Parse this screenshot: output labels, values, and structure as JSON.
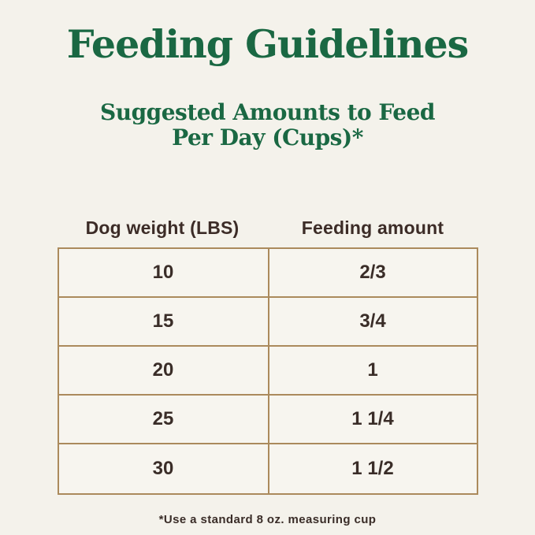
{
  "colors": {
    "background": "#f4f2eb",
    "title_green": "#1a6843",
    "table_border_tan": "#ab8a5c",
    "text_dark_brown": "#3a2d28"
  },
  "header": {
    "title": "Feeding Guidelines",
    "subtitle_line1": "Suggested Amounts to Feed",
    "subtitle_line2": "Per Day (Cups)*"
  },
  "table": {
    "columns": [
      "Dog weight (LBS)",
      "Feeding amount"
    ],
    "rows": [
      [
        "10",
        "2/3"
      ],
      [
        "15",
        "3/4"
      ],
      [
        "20",
        "1"
      ],
      [
        "25",
        "1 1/4"
      ],
      [
        "30",
        "1 1/2"
      ]
    ]
  },
  "footnote": "*Use a standard 8 oz. measuring cup",
  "chart_data": {
    "type": "table",
    "title": "Feeding Guidelines",
    "subtitle": "Suggested Amounts to Feed Per Day (Cups)*",
    "columns": [
      "Dog weight (LBS)",
      "Feeding amount"
    ],
    "rows": [
      [
        "10",
        "2/3"
      ],
      [
        "15",
        "3/4"
      ],
      [
        "20",
        "1"
      ],
      [
        "25",
        "1 1/4"
      ],
      [
        "30",
        "1 1/2"
      ]
    ],
    "footnote": "*Use a standard 8 oz. measuring cup",
    "units": {
      "dog_weight": "LBS",
      "feeding_amount": "cups per day"
    }
  }
}
